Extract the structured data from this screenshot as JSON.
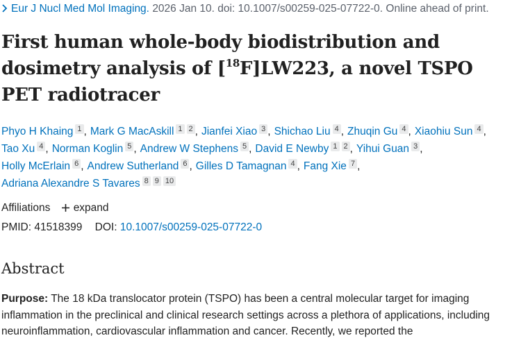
{
  "citation": {
    "journal": "Eur J Nucl Med Mol Imaging.",
    "details": "2026 Jan 10. doi: 10.1007/s00259-025-07722-0. Online ahead of print."
  },
  "title": {
    "before": "First human whole-body biodistribution and dosimetry analysis of [",
    "superscript": "18",
    "after": "F]LW223, a novel TSPO PET radiotracer"
  },
  "author_lines": [
    [
      {
        "name": "Phyo H Khaing",
        "affiliations": [
          1
        ],
        "punct": ","
      },
      {
        "name": "Mark G MacAskill",
        "affiliations": [
          1,
          2
        ],
        "punct": ","
      },
      {
        "name": "Jianfei Xiao",
        "affiliations": [
          3
        ],
        "punct": ","
      },
      {
        "name": "Shichao Liu",
        "affiliations": [
          4
        ],
        "punct": ","
      },
      {
        "name": "Zhuqin Gu",
        "affiliations": [
          4
        ],
        "punct": ","
      },
      {
        "name": "Xiaohiu Sun",
        "affiliations": [
          4
        ],
        "punct": ","
      }
    ],
    [
      {
        "name": "Tao Xu",
        "affiliations": [
          4
        ],
        "punct": ","
      },
      {
        "name": "Norman Koglin",
        "affiliations": [
          5
        ],
        "punct": ","
      },
      {
        "name": "Andrew W Stephens",
        "affiliations": [
          5
        ],
        "punct": ","
      },
      {
        "name": "David E Newby",
        "affiliations": [
          1,
          2
        ],
        "punct": ","
      },
      {
        "name": "Yihui Guan",
        "affiliations": [
          3
        ],
        "punct": ","
      }
    ],
    [
      {
        "name": "Holly McErlain",
        "affiliations": [
          6
        ],
        "punct": ","
      },
      {
        "name": "Andrew Sutherland",
        "affiliations": [
          6
        ],
        "punct": ","
      },
      {
        "name": "Gilles D Tamagnan",
        "affiliations": [
          4
        ],
        "punct": ","
      },
      {
        "name": "Fang Xie",
        "affiliations": [
          7
        ],
        "punct": ","
      }
    ],
    [
      {
        "name": "Adriana Alexandre S Tavares",
        "affiliations": [
          8,
          9,
          10
        ]
      }
    ]
  ],
  "affiliations": {
    "label": "Affiliations",
    "toggle": "expand"
  },
  "ids": {
    "pmid_label": "PMID:",
    "pmid": "41518399",
    "doi_label": "DOI:",
    "doi": "10.1007/s00259-025-07722-0"
  },
  "abstract": {
    "heading": "Abstract",
    "purpose_label": "Purpose:",
    "purpose_text": "The 18 kDa translocator protein (TSPO) has been a central molecular target for imaging inflammation in the preclinical and clinical research settings across a plethora of applications, including neuroinflammation, cardiovascular inflammation and cancer. Recently, we reported the"
  }
}
